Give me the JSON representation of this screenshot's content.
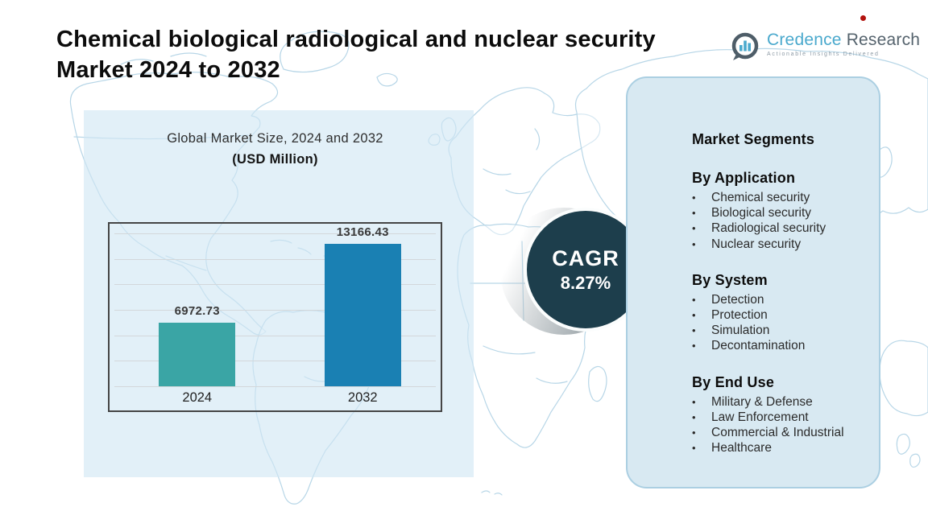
{
  "header": {
    "title_lines": [
      "Chemical biological radiological and nuclear security",
      "Market 2024 to 2032"
    ],
    "full_title": "Chemical biological radiological and nuclear security Market 2024 to 2032"
  },
  "logo": {
    "name_primary": "Credence",
    "name_secondary": " Research",
    "tagline": "Actionable Insights Delivered",
    "icon": "bar-chart-bubble-icon",
    "primary_color": "#4aa9cd",
    "secondary_color": "#55636d",
    "accent_dot_color": "#b2120e"
  },
  "chart_data": {
    "type": "bar",
    "title": "Global Market Size, 2024 and 2032",
    "subtitle": "(USD Million)",
    "unit": "USD Million",
    "categories": [
      "2024",
      "2032"
    ],
    "values": [
      6972.73,
      13166.43
    ],
    "value_labels": [
      "6972.73",
      "13166.43"
    ],
    "bar_colors": [
      "#3aa5a5",
      "#1a80b3"
    ],
    "ylim": [
      2000,
      14000
    ],
    "gridlines": 7,
    "grid": true,
    "legend": false
  },
  "cagr_badge": {
    "label": "CAGR",
    "value": "8.27%",
    "bg_color": "#1d3e4c",
    "text_color": "#ffffff"
  },
  "segments_panel": {
    "heading": "Market Segments",
    "bullet": "•",
    "bg_color": "#d8e9f2",
    "groups": [
      {
        "title": "By Application",
        "items": [
          "Chemical security",
          "Biological security",
          "Radiological security",
          "Nuclear security"
        ]
      },
      {
        "title": "By System",
        "items": [
          "Detection",
          "Protection",
          "Simulation",
          "Decontamination"
        ]
      },
      {
        "title": "By End Use",
        "items": [
          "Military & Defense",
          "Law Enforcement",
          "Commercial & Industrial",
          "Healthcare"
        ]
      }
    ]
  }
}
